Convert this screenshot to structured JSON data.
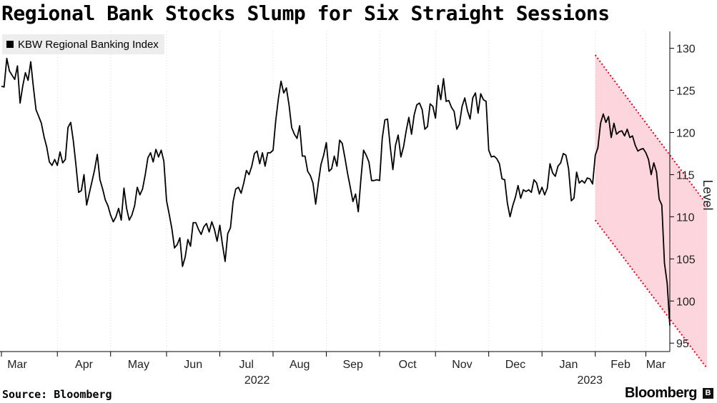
{
  "header": {
    "title": "Regional Bank Stocks Slump for Six Straight Sessions"
  },
  "footer": {
    "source": "Source: Bloomberg",
    "brand": "Bloomberg",
    "brand_icon": "bloomberg-b-icon"
  },
  "colors": {
    "line": "#000000",
    "channel_fill": "#fdd5dd",
    "channel_border": "#e8001c",
    "grid": "#d9d9d9",
    "legend_bg": "#ededed"
  },
  "chart_data": {
    "type": "line",
    "title": "Regional Bank Stocks Slump for Six Straight Sessions",
    "ylabel": "Level",
    "ylim": [
      94,
      132
    ],
    "y_axis_side": "right",
    "yticks": [
      95,
      100,
      105,
      110,
      115,
      120,
      125,
      130
    ],
    "grid": "vertical dotted at month boundaries",
    "legend_placement": "top-left",
    "months": [
      {
        "label": "Mar",
        "index": 0
      },
      {
        "label": "Apr",
        "index": 21
      },
      {
        "label": "May",
        "index": 41
      },
      {
        "label": "Jun",
        "index": 62
      },
      {
        "label": "Jul",
        "index": 82
      },
      {
        "label": "Aug",
        "index": 102
      },
      {
        "label": "Sep",
        "index": 122
      },
      {
        "label": "Oct",
        "index": 142
      },
      {
        "label": "Nov",
        "index": 163
      },
      {
        "label": "Dec",
        "index": 183
      },
      {
        "label": "Jan",
        "index": 203
      },
      {
        "label": "Feb",
        "index": 223
      },
      {
        "label": "Mar",
        "index": 242
      }
    ],
    "years": [
      {
        "label": "2022",
        "index": 96
      },
      {
        "label": "2023",
        "index": 221
      }
    ],
    "series": [
      {
        "name": "KBW Regional Banking Index",
        "values": [
          125.5,
          125.4,
          128.8,
          127.3,
          126.8,
          126.3,
          127.9,
          123.5,
          125.5,
          127.1,
          126.2,
          128.4,
          125.4,
          122.7,
          121.9,
          121.1,
          119.5,
          118.3,
          116.5,
          116.1,
          116.8,
          116.1,
          117.7,
          116.4,
          116.8,
          120.6,
          121.2,
          119.0,
          116.1,
          112.9,
          113.1,
          115.0,
          111.4,
          112.8,
          114.2,
          115.6,
          117.4,
          114.4,
          113.3,
          112.0,
          111.3,
          110.2,
          109.4,
          110.0,
          111.0,
          109.6,
          113.4,
          111.0,
          109.6,
          110.2,
          111.3,
          113.5,
          112.6,
          113.3,
          115.0,
          117.0,
          117.6,
          116.5,
          118.0,
          117.1,
          117.9,
          116.6,
          111.9,
          110.3,
          108.6,
          106.3,
          106.7,
          107.5,
          104.1,
          105.2,
          107.3,
          106.5,
          109.3,
          109.3,
          108.5,
          107.9,
          108.8,
          109.2,
          108.2,
          109.4,
          108.5,
          107.1,
          109.0,
          106.7,
          104.7,
          108.0,
          108.7,
          111.8,
          113.3,
          113.5,
          112.8,
          114.0,
          115.5,
          115.0,
          116.0,
          117.5,
          117.8,
          116.3,
          117.6,
          116.0,
          117.6,
          117.6,
          117.9,
          121.4,
          124.0,
          126.1,
          124.7,
          125.3,
          123.3,
          120.6,
          119.8,
          119.3,
          120.8,
          117.2,
          117.2,
          115.4,
          114.9,
          114.0,
          111.5,
          114.0,
          116.2,
          117.3,
          118.8,
          115.4,
          115.7,
          117.2,
          116.0,
          119.1,
          118.7,
          117.0,
          115.1,
          113.5,
          111.8,
          112.7,
          110.6,
          114.5,
          117.9,
          117.3,
          116.5,
          114.3,
          114.3,
          114.4,
          114.3,
          119.3,
          121.5,
          121.6,
          118.3,
          115.6,
          118.5,
          119.7,
          117.1,
          118.3,
          120.2,
          121.8,
          119.8,
          122.1,
          123.3,
          123.5,
          122.7,
          120.4,
          120.7,
          123.4,
          123.1,
          121.7,
          125.6,
          123.9,
          126.4,
          123.7,
          123.8,
          123.0,
          122.5,
          120.4,
          121.0,
          123.1,
          124.1,
          122.6,
          121.6,
          124.1,
          124.7,
          122.3,
          124.6,
          123.9,
          123.7,
          117.9,
          117.1,
          117.2,
          116.9,
          116.3,
          114.5,
          114.4,
          111.6,
          110.0,
          111.3,
          112.3,
          113.7,
          112.2,
          113.2,
          113.0,
          113.2,
          112.9,
          114.4,
          114.0,
          112.7,
          113.5,
          112.6,
          113.4,
          116.3,
          115.2,
          114.8,
          116.0,
          116.4,
          117.5,
          117.3,
          115.7,
          111.9,
          112.2,
          115.3,
          114.0,
          114.3,
          114.0,
          114.6,
          114.5,
          113.9,
          117.3,
          118.2,
          121.1,
          122.2,
          121.2,
          121.9,
          119.4,
          121.1,
          119.8,
          120.1,
          120.2,
          119.6,
          120.4,
          119.4,
          119.6,
          118.5,
          117.8,
          118.0,
          118.1,
          117.6,
          116.8,
          115.0,
          116.4,
          115.3,
          112.1,
          111.4,
          104.5,
          102.1,
          97.1
        ]
      }
    ],
    "annotation": {
      "type": "descending-channel",
      "start_index": 223,
      "end_index": 265,
      "upper_start": 129.2,
      "upper_end": 111.4,
      "lower_start": 109.6,
      "lower_end": 92.0
    }
  }
}
